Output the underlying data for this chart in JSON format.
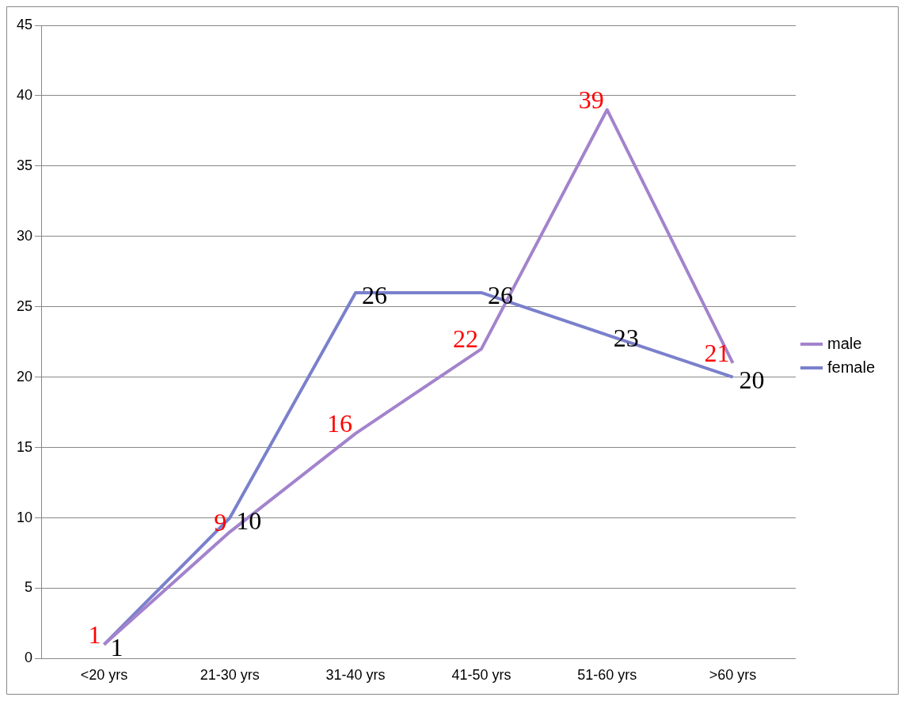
{
  "chart_data": {
    "type": "line",
    "categories": [
      "<20 yrs",
      "21-30 yrs",
      "31-40 yrs",
      "41-50 yrs",
      "51-60 yrs",
      ">60 yrs"
    ],
    "series": [
      {
        "name": "male",
        "color": "#a383cc",
        "values": [
          1,
          9,
          16,
          22,
          39,
          21
        ]
      },
      {
        "name": "female",
        "color": "#7b80cc",
        "values": [
          1,
          10,
          26,
          26,
          23,
          20
        ]
      }
    ],
    "ylim": [
      0,
      45
    ],
    "yticks": [
      0,
      5,
      10,
      15,
      20,
      25,
      30,
      35,
      40,
      45
    ],
    "grid": "y",
    "legend": "right",
    "marker": "none",
    "line_style": "solid",
    "data_labels": true
  }
}
